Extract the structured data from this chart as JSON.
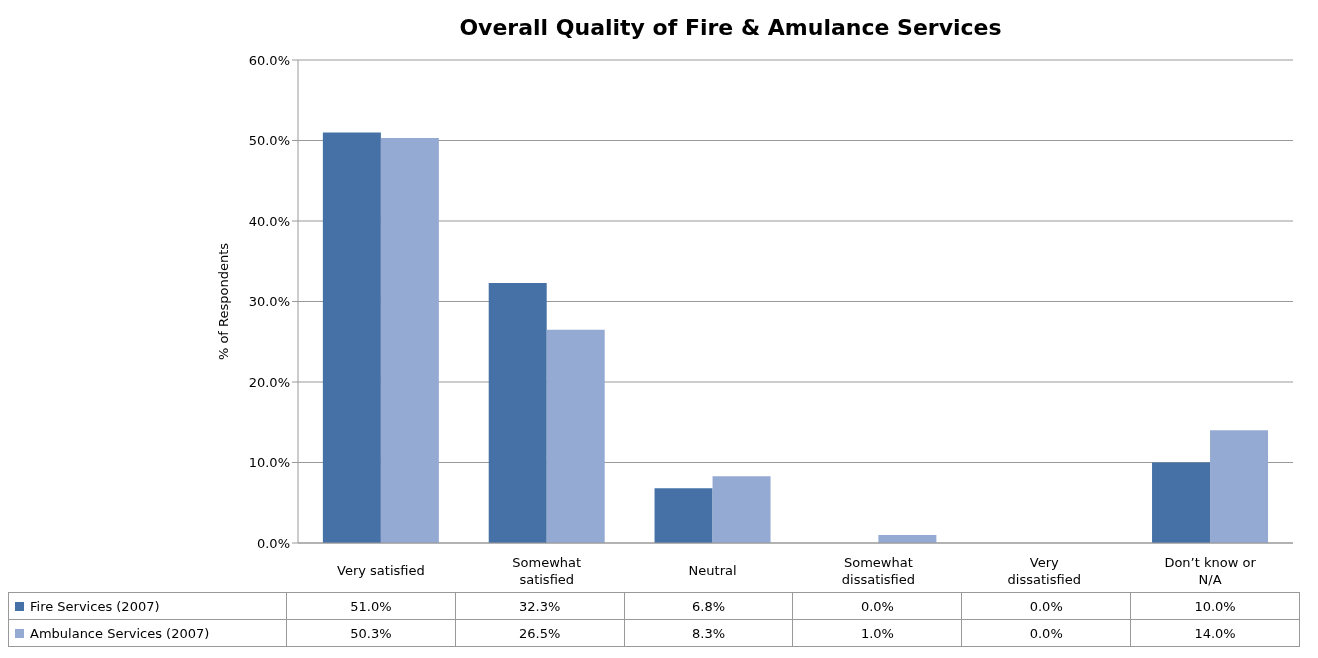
{
  "chart_data": {
    "type": "bar",
    "title": "Overall Quality of Fire & Amulance Services",
    "ylabel": "% of Respondents",
    "categories": [
      "Very satisfied",
      "Somewhat satisfied",
      "Neutral",
      "Somewhat dissatisfied",
      "Very dissatisfied",
      "Don’t know or N/A"
    ],
    "series": [
      {
        "name": "Fire Services (2007)",
        "color": "#4571a6",
        "values": [
          51.0,
          32.3,
          6.8,
          0.0,
          0.0,
          10.0
        ],
        "value_labels": [
          "51.0%",
          "32.3%",
          "6.8%",
          "0.0%",
          "0.0%",
          "10.0%"
        ]
      },
      {
        "name": "Ambulance Services (2007)",
        "color": "#95aad2",
        "values": [
          50.3,
          26.5,
          8.3,
          1.0,
          0.0,
          14.0
        ],
        "value_labels": [
          "50.3%",
          "26.5%",
          "8.3%",
          "1.0%",
          "0.0%",
          "14.0%"
        ]
      }
    ],
    "ylim": [
      0,
      60
    ],
    "yticks": [
      {
        "value": 0,
        "label": "0.0%"
      },
      {
        "value": 10,
        "label": "10.0%"
      },
      {
        "value": 20,
        "label": "20.0%"
      },
      {
        "value": 30,
        "label": "30.0%"
      },
      {
        "value": 40,
        "label": "40.0%"
      },
      {
        "value": 50,
        "label": "50.0%"
      },
      {
        "value": 60,
        "label": "60.0%"
      }
    ],
    "grid": "y",
    "legend": "bottom"
  }
}
